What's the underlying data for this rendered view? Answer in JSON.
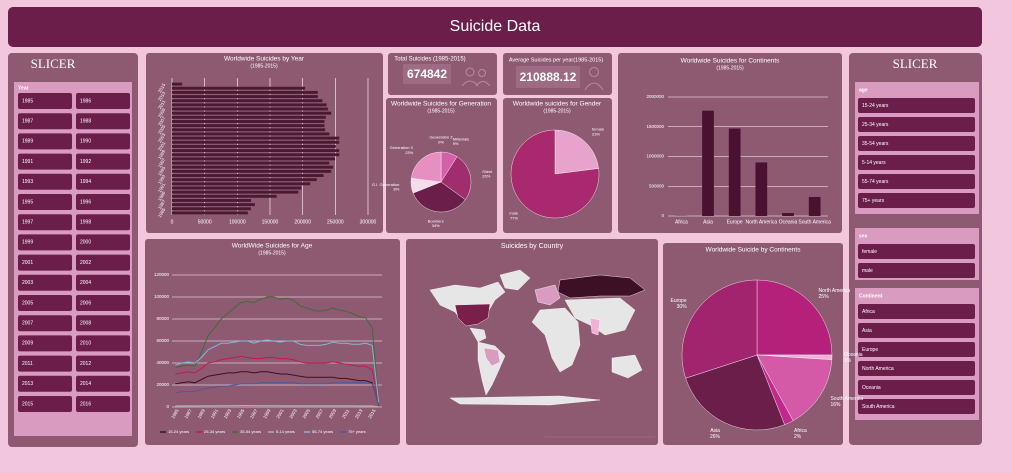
{
  "title": "Suicide Data",
  "cards": [
    {
      "title": "Total Suicides (1985-2015)",
      "value": 674842
    },
    {
      "title": "Average Suicides per year(1985-2015)",
      "value": 210888.12
    }
  ],
  "map": {
    "title": "Suicides by Country"
  },
  "slicers": {
    "left": {
      "title": "SLICER",
      "groups": [
        {
          "header": "Year",
          "items": [
            "1985",
            "1986",
            "1987",
            "1988",
            "1989",
            "1990",
            "1991",
            "1992",
            "1993",
            "1994",
            "1995",
            "1996",
            "1997",
            "1998",
            "1999",
            "2000",
            "2001",
            "2002",
            "2003",
            "2004",
            "2005",
            "2006",
            "2007",
            "2008",
            "2009",
            "2010",
            "2011",
            "2012",
            "2013",
            "2014",
            "2015",
            "2016"
          ]
        }
      ]
    },
    "right": {
      "title": "SLICER",
      "groups": [
        {
          "header": "age",
          "items": [
            "15-24 years",
            "25-34 years",
            "35-54 years",
            "5-14 years",
            "55-74 years",
            "75+ years"
          ]
        },
        {
          "header": "sex",
          "items": [
            "female",
            "male"
          ]
        },
        {
          "header": "Continent",
          "items": [
            "Africa",
            "Asia",
            "Europe",
            "North America",
            "Oceania",
            "South America"
          ]
        }
      ]
    }
  },
  "chart_data": [
    {
      "type": "bar",
      "orientation": "horizontal",
      "title": "Worldwide Suicides by Year",
      "subtitle": "(1985-2015)",
      "color": "#4a1a33",
      "grid": true,
      "categories": [
        null,
        "2015",
        null,
        "2013",
        null,
        "2011",
        null,
        "2009",
        null,
        "2007",
        null,
        "2005",
        null,
        "2003",
        null,
        "2001",
        null,
        "1999",
        null,
        "1997",
        null,
        "1995",
        null,
        "1993",
        null,
        "1991",
        null,
        "1989",
        null,
        "1987",
        null,
        "1985"
      ],
      "values": [
        15603,
        203640,
        222984,
        223199,
        230160,
        236484,
        238702,
        243487,
        235447,
        233408,
        233361,
        234375,
        240861,
        256079,
        256095,
        250652,
        255832,
        256119,
        249591,
        240745,
        246725,
        243544,
        232063,
        221565,
        211473,
        198020,
        193361,
        160244,
        121026,
        126842,
        120670,
        116063
      ],
      "xlim": [
        0,
        300000
      ],
      "xticks": [
        0,
        50000,
        100000,
        150000,
        200000,
        250000,
        300000
      ]
    },
    {
      "type": "pie",
      "title": "Worldwide Suicides for Generation",
      "subtitle": "(1985-2015)",
      "categories": [
        "Generation Z",
        "Millenials",
        "Silent",
        "Boomers",
        "G.I. Generation",
        "Generation X"
      ],
      "values": [
        0,
        9,
        26,
        34,
        8,
        23
      ],
      "value_labels": [
        "0%",
        "9%",
        "26%",
        "34%",
        "8%",
        "23%"
      ],
      "colors": [
        "#f7d0e4",
        "#d660a8",
        "#a02e6e",
        "#6b1e4a",
        "#f5dcea",
        "#e78fc0"
      ]
    },
    {
      "type": "pie",
      "title": "Worldwide suicides for Gender",
      "subtitle": "(1985-2015)",
      "categories": [
        "female",
        "male"
      ],
      "values": [
        23,
        77
      ],
      "value_labels": [
        "23%",
        "77%"
      ],
      "colors": [
        "#e8a3cc",
        "#a8296e"
      ]
    },
    {
      "type": "bar",
      "title": "Worldwide Suicides for Continents",
      "subtitle": "(1985-2015)",
      "color": "#4a1230",
      "grid": true,
      "categories": [
        "Africa",
        "Asia",
        "Europe",
        "North America",
        "Oceania",
        "South America"
      ],
      "values": [
        3000,
        1770000,
        1470000,
        900000,
        50000,
        320000
      ],
      "ylim": [
        0,
        2000000
      ],
      "yticks": [
        0,
        500000,
        1000000,
        1500000,
        2000000
      ]
    },
    {
      "type": "line",
      "title": "WorldWide Suicides for Age",
      "subtitle": "(1985-2015)",
      "grid": true,
      "categories": [
        "1985",
        null,
        "1987",
        null,
        "1989",
        null,
        "1991",
        null,
        "1993",
        null,
        "1995",
        null,
        "1997",
        null,
        "1999",
        null,
        "2001",
        null,
        "2003",
        null,
        "2005",
        null,
        "2007",
        null,
        "2009",
        null,
        "2011",
        null,
        "2013",
        null,
        "2015",
        null
      ],
      "ylim": [
        0,
        120000
      ],
      "yticks": [
        0,
        20000,
        40000,
        60000,
        80000,
        100000,
        120000
      ],
      "series": [
        {
          "name": "15-24 years",
          "color": "#3d1028",
          "values": [
            21000,
            22000,
            23000,
            22000,
            25000,
            28000,
            29000,
            30000,
            31000,
            31000,
            32000,
            32000,
            31000,
            32000,
            32000,
            31000,
            30000,
            30000,
            29000,
            28000,
            27000,
            27000,
            27000,
            27000,
            27000,
            26000,
            26000,
            25000,
            24000,
            24000,
            22000,
            1500
          ]
        },
        {
          "name": "25-34 years",
          "color": "#c2185b",
          "values": [
            30000,
            31000,
            32000,
            31000,
            35000,
            40000,
            41000,
            43000,
            44000,
            45000,
            46000,
            45000,
            44000,
            44000,
            45000,
            45000,
            44000,
            44000,
            43000,
            41000,
            40000,
            40000,
            40000,
            40000,
            41000,
            40000,
            39000,
            38000,
            37000,
            37000,
            34000,
            2500
          ]
        },
        {
          "name": "35-54 years",
          "color": "#3f6b3a",
          "values": [
            36000,
            37000,
            38000,
            37000,
            50000,
            65000,
            72000,
            80000,
            85000,
            90000,
            95000,
            96000,
            95000,
            98000,
            100000,
            100000,
            98000,
            99000,
            97000,
            92000,
            90000,
            88000,
            87000,
            88000,
            90000,
            88000,
            87000,
            85000,
            82000,
            81000,
            72000,
            5000
          ]
        },
        {
          "name": "5-14 years",
          "color": "#b0b0b0",
          "values": [
            1000,
            1000,
            1100,
            1000,
            1100,
            1200,
            1200,
            1300,
            1300,
            1300,
            1400,
            1400,
            1300,
            1300,
            1300,
            1300,
            1200,
            1200,
            1200,
            1100,
            1100,
            1100,
            1100,
            1100,
            1100,
            1100,
            1100,
            1100,
            1000,
            1000,
            1000,
            100
          ]
        },
        {
          "name": "55-74 years",
          "color": "#7ab8d8",
          "values": [
            38000,
            40000,
            41000,
            40000,
            45000,
            52000,
            55000,
            58000,
            58000,
            59000,
            60000,
            60000,
            58000,
            60000,
            61000,
            60000,
            59000,
            60000,
            60000,
            57000,
            56000,
            56000,
            56000,
            57000,
            59000,
            58000,
            58000,
            57000,
            57000,
            58000,
            56000,
            4000
          ]
        },
        {
          "name": "75+ years",
          "color": "#4a5a9a",
          "values": [
            13000,
            14000,
            14000,
            14000,
            16000,
            17000,
            18000,
            19000,
            19000,
            20000,
            21000,
            21000,
            21000,
            22000,
            22000,
            22000,
            22000,
            22000,
            22000,
            21000,
            21000,
            21000,
            21000,
            21000,
            22000,
            22000,
            22000,
            22000,
            22000,
            22000,
            21000,
            1800
          ]
        }
      ]
    },
    {
      "type": "pie",
      "title": "Worldwide Suicide by Continents",
      "categories": [
        "North America",
        "Oceania",
        "South America",
        "Africa",
        "Asia",
        "Europe"
      ],
      "values": [
        25,
        1,
        16,
        2,
        26,
        30
      ],
      "value_labels": [
        "25%",
        "1%",
        "16%",
        "2%",
        "26%",
        "30%"
      ],
      "colors": [
        "#b5207a",
        "#f0b0d8",
        "#d45aa8",
        "#c0288c",
        "#6b1e4a",
        "#a3246e"
      ]
    }
  ]
}
